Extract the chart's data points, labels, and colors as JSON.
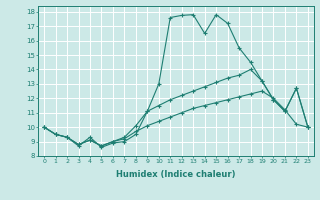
{
  "xlabel": "Humidex (Indice chaleur)",
  "xlim": [
    -0.5,
    23.5
  ],
  "ylim": [
    8,
    18.4
  ],
  "xticks": [
    0,
    1,
    2,
    3,
    4,
    5,
    6,
    7,
    8,
    9,
    10,
    11,
    12,
    13,
    14,
    15,
    16,
    17,
    18,
    19,
    20,
    21,
    22,
    23
  ],
  "yticks": [
    8,
    9,
    10,
    11,
    12,
    13,
    14,
    15,
    16,
    17,
    18
  ],
  "bg_color": "#cce9e7",
  "grid_color": "#ffffff",
  "line_color": "#1e7e72",
  "line1_y": [
    10.0,
    9.5,
    9.3,
    8.7,
    9.3,
    8.6,
    8.9,
    9.0,
    9.5,
    11.1,
    13.0,
    17.6,
    17.75,
    17.8,
    16.5,
    17.8,
    17.2,
    15.5,
    14.5,
    13.2,
    11.9,
    11.1,
    12.7,
    10.0
  ],
  "line2_y": [
    10.0,
    9.5,
    9.3,
    8.8,
    9.1,
    8.7,
    9.0,
    9.3,
    10.1,
    11.1,
    11.5,
    11.9,
    12.2,
    12.5,
    12.8,
    13.1,
    13.4,
    13.6,
    14.0,
    13.2,
    11.9,
    11.1,
    12.7,
    10.0
  ],
  "line3_y": [
    10.0,
    9.5,
    9.3,
    8.8,
    9.1,
    8.7,
    9.0,
    9.2,
    9.7,
    10.1,
    10.4,
    10.7,
    11.0,
    11.3,
    11.5,
    11.7,
    11.9,
    12.1,
    12.3,
    12.5,
    12.0,
    11.2,
    10.2,
    10.0
  ]
}
